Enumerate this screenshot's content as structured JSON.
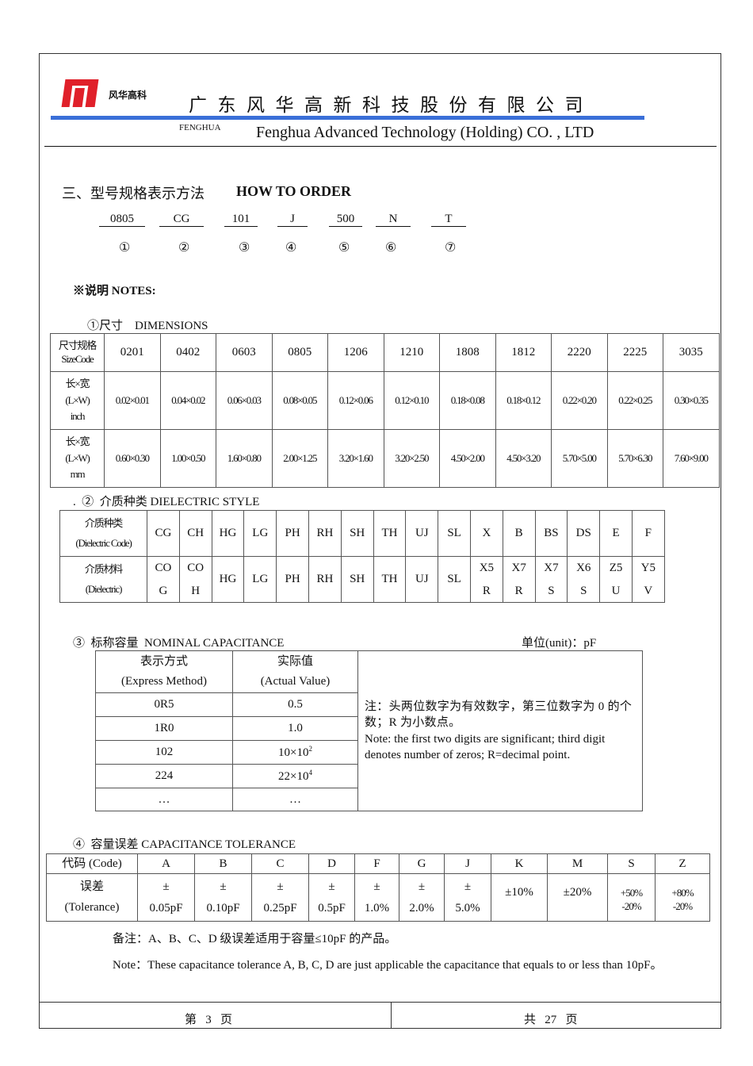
{
  "header": {
    "logo_text": "风华高科",
    "company_cn": "广东风华高新科技股份有限公司",
    "brand_en": "FENGHUA",
    "company_en": "Fenghua Advanced Technology (Holding) CO. , LTD",
    "brand_color": "#e0202a",
    "line_color": "#3a6fd8"
  },
  "section": {
    "title_cn": "三、型号规格表示方法",
    "title_en": "HOW TO ORDER"
  },
  "order_code": [
    {
      "code": "0805",
      "num": "①"
    },
    {
      "code": "CG",
      "num": "②"
    },
    {
      "code": "101",
      "num": "③"
    },
    {
      "code": "J",
      "num": "④"
    },
    {
      "code": "500",
      "num": "⑤"
    },
    {
      "code": "N",
      "num": "⑥"
    },
    {
      "code": "T",
      "num": "⑦"
    }
  ],
  "notes_title": "※说明  NOTES:",
  "dimensions": {
    "title": "①尺寸    DIMENSIONS",
    "row_heads": [
      [
        "尺寸规格",
        "SizeCode"
      ],
      [
        "长×宽",
        "(L×W)",
        "inch"
      ],
      [
        "长×宽",
        "(L×W)",
        "mm"
      ]
    ],
    "codes": [
      "0201",
      "0402",
      "0603",
      "0805",
      "1206",
      "1210",
      "1808",
      "1812",
      "2220",
      "2225",
      "3035"
    ],
    "inch": [
      "0.02×0.01",
      "0.04×0.02",
      "0.06×0.03",
      "0.08×0.05",
      "0.12×0.06",
      "0.12×0.10",
      "0.18×0.08",
      "0.18×0.12",
      "0.22×0.20",
      "0.22×0.25",
      "0.30×0.35"
    ],
    "mm": [
      "0.60×0.30",
      "1.00×0.50",
      "1.60×0.80",
      "2.00×1.25",
      "3.20×1.60",
      "3.20×2.50",
      "4.50×2.00",
      "4.50×3.20",
      "5.70×5.00",
      "5.70×6.30",
      "7.60×9.00"
    ]
  },
  "dielectric": {
    "title": ".  ②  介质种类 DIELECTRIC STYLE",
    "row_heads": [
      [
        "介质种类",
        "(Dielectric Code)"
      ],
      [
        "介质材料",
        "(Dielectric)"
      ]
    ],
    "codes": [
      "CG",
      "CH",
      "HG",
      "LG",
      "PH",
      "RH",
      "SH",
      "TH",
      "UJ",
      "SL",
      "X",
      "B",
      "BS",
      "DS",
      "E",
      "F"
    ],
    "materials": [
      [
        "CO",
        "G"
      ],
      [
        "CO",
        "H"
      ],
      [
        "HG"
      ],
      [
        "LG"
      ],
      [
        "PH"
      ],
      [
        "RH"
      ],
      [
        "SH"
      ],
      [
        "TH"
      ],
      [
        "UJ"
      ],
      [
        "SL"
      ],
      [
        "X5",
        "R"
      ],
      [
        "X7",
        "R"
      ],
      [
        "X7",
        "S"
      ],
      [
        "X6",
        "S"
      ],
      [
        "Z5",
        "U"
      ],
      [
        "Y5",
        "V"
      ]
    ]
  },
  "capacitance": {
    "title": "③  标称容量  NOMINAL CAPACITANCE",
    "unit": "单位(unit)：pF",
    "head": [
      [
        "表示方式",
        "(Express Method)"
      ],
      [
        "实际值",
        "(Actual Value)"
      ]
    ],
    "rows": [
      [
        "0R5",
        "0.5"
      ],
      [
        "1R0",
        "1.0"
      ],
      [
        "102",
        "10×10",
        "2"
      ],
      [
        "224",
        "22×10",
        "4"
      ],
      [
        "…",
        "…"
      ]
    ],
    "note_cn": "注：头两位数字为有效数字，第三位数字为 0 的个数；R 为小数点。",
    "note_en": "Note: the first two digits are significant; third digit denotes number of zeros; R=decimal point."
  },
  "tolerance": {
    "title": "④  容量误差 CAPACITANCE TOLERANCE",
    "row_heads": [
      "代码 (Code)",
      [
        "误差",
        "(Tolerance)"
      ]
    ],
    "codes": [
      "A",
      "B",
      "C",
      "D",
      "F",
      "G",
      "J",
      "K",
      "M",
      "S",
      "Z"
    ],
    "values": [
      [
        "±",
        "0.05pF"
      ],
      [
        "±",
        "0.10pF"
      ],
      [
        "±",
        "0.25pF"
      ],
      [
        "±",
        "0.5pF"
      ],
      [
        "±",
        "1.0%"
      ],
      [
        "±",
        "2.0%"
      ],
      [
        "±",
        "5.0%"
      ],
      [
        "±10%"
      ],
      [
        "±20%"
      ],
      [
        "+50%",
        "-20%"
      ],
      [
        "+80%",
        "-20%"
      ]
    ],
    "remark_cn": "备注：A、B、C、D 级误差适用于容量≤10pF 的产品。",
    "remark_en": "Note：These capacitance tolerance A, B, C, D are just applicable the capacitance that equals to or less than 10pF。"
  },
  "footer": {
    "page": "第   3   页",
    "total": "共   27   页"
  }
}
